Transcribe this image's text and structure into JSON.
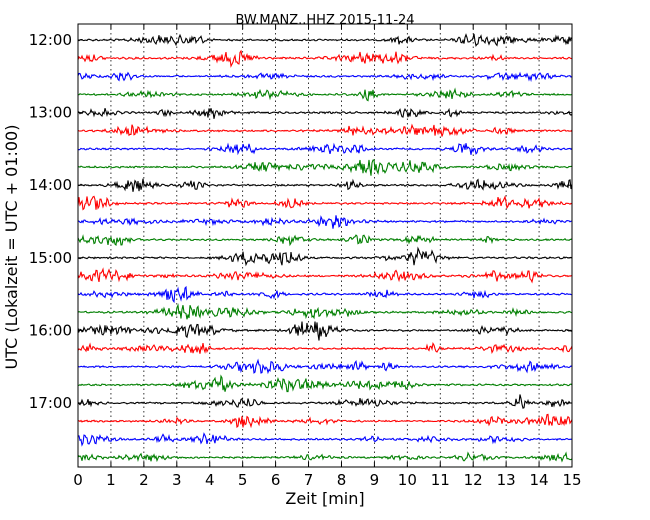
{
  "chart_data": {
    "type": "line",
    "title": "BW.MANZ..HHZ 2015-11-24",
    "xlabel": "Zeit  [min]",
    "ylabel": "UTC (Lokalzeit = UTC + 01:00)",
    "xlim": [
      0,
      15
    ],
    "x_ticks": [
      "0",
      "1",
      "2",
      "3",
      "4",
      "5",
      "6",
      "7",
      "8",
      "9",
      "10",
      "11",
      "12",
      "13",
      "14",
      "15"
    ],
    "y_tick_labels": [
      "12:00",
      "13:00",
      "14:00",
      "15:00",
      "16:00",
      "17:00"
    ],
    "trace_interval_minutes": 15,
    "trace_start_times": [
      "12:00",
      "12:15",
      "12:30",
      "12:45",
      "13:00",
      "13:15",
      "13:30",
      "13:45",
      "14:00",
      "14:15",
      "14:30",
      "14:45",
      "15:00",
      "15:15",
      "15:30",
      "15:45",
      "16:00",
      "16:15",
      "16:30",
      "16:45",
      "17:00",
      "17:15",
      "17:30",
      "17:45"
    ],
    "trace_colors": [
      "#000000",
      "#ff0000",
      "#0000ff",
      "#007f00"
    ],
    "grid": "vertical dotted at each minute",
    "legend": "none"
  }
}
